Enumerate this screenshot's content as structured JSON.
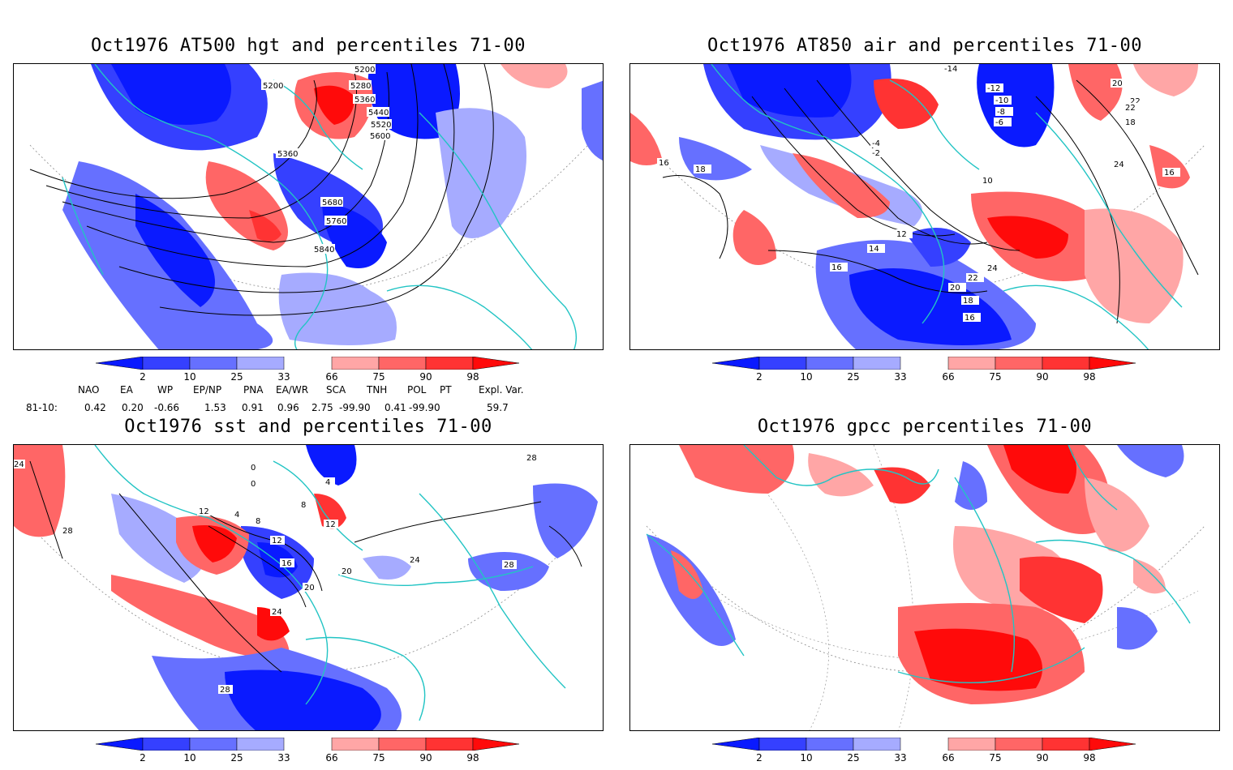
{
  "panels": [
    {
      "title": "Oct1976 AT500 hgt and percentiles 71-00",
      "contour_labels": [
        "5200",
        "5200",
        "5280",
        "5360",
        "5440",
        "5520",
        "5600",
        "5360",
        "5680",
        "5760",
        "5840"
      ]
    },
    {
      "title": "Oct1976 AT850 air and percentiles 71-00",
      "contour_labels": [
        "-14",
        "-12",
        "-10",
        "-8",
        "-6",
        "-4",
        "-2",
        "16",
        "18",
        "20",
        "22",
        "24",
        "22",
        "18",
        "16",
        "12",
        "14",
        "16",
        "24",
        "22",
        "20",
        "18",
        "16",
        "10"
      ]
    },
    {
      "title": "Oct1976 sst and percentiles 71-00",
      "contour_labels": [
        "24",
        "28",
        "12",
        "4",
        "8",
        "12",
        "16",
        "20",
        "24",
        "28",
        "20",
        "24",
        "28",
        "0",
        "0",
        "4",
        "8",
        "12",
        "28"
      ]
    },
    {
      "title": "Oct1976 gpcc percentiles 71-00",
      "contour_labels": []
    }
  ],
  "colorbar": {
    "labels": [
      "2",
      "10",
      "25",
      "33",
      "66",
      "75",
      "90",
      "98"
    ],
    "colors": {
      "deep_blue": "#0a1aff",
      "blue": "#3540ff",
      "mid_blue": "#6670ff",
      "light_blue": "#a6abff",
      "light_red": "#ffa6a6",
      "mid_red": "#ff6666",
      "red": "#ff3333",
      "deep_red": "#ff0a0a"
    }
  },
  "indices": {
    "headers": [
      "NAO",
      "EA",
      "WP",
      "EP/NP",
      "PNA",
      "EA/WR",
      "SCA",
      "TNH",
      "POL",
      "PT",
      "Expl. Var."
    ],
    "row_label": "81-10:",
    "values": [
      "0.42",
      "0.20",
      "-0.66",
      "1.53",
      "0.91",
      "0.96",
      "2.75",
      "-99.90",
      "0.41",
      "-99.90",
      "59.7"
    ]
  },
  "map_colors": {
    "coast": "#22c4c4",
    "contour": "#000000",
    "grid": "#888888"
  }
}
